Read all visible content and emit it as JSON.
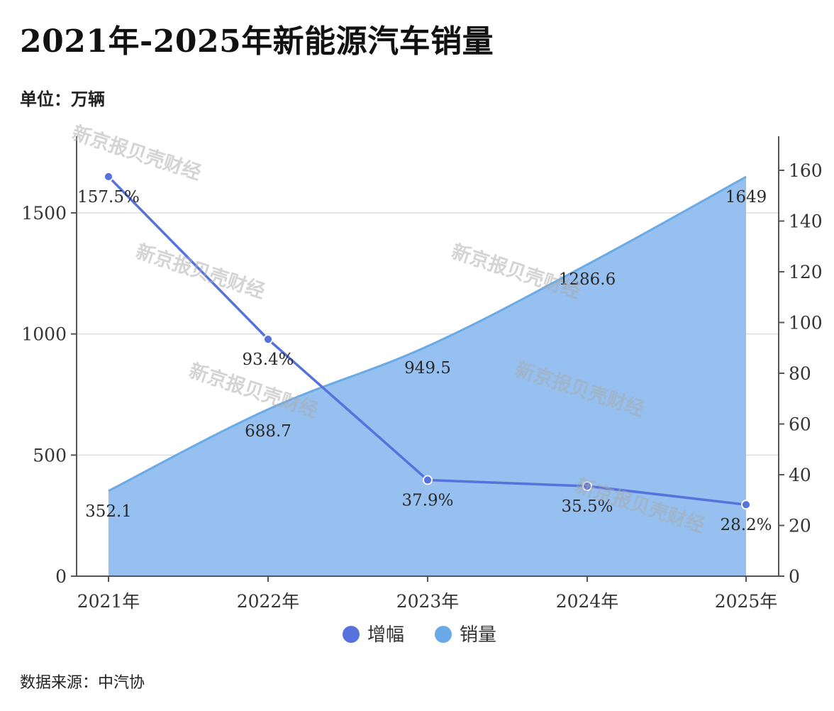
{
  "title": "2021年-2025年新能源汽车销量",
  "unit": "单位：万辆",
  "source": "数据来源：中汽协",
  "watermark": "新京报贝壳财经",
  "colors": {
    "growth_line": "#5672dd",
    "sales_fill": "#95c0ef",
    "sales_line": "#6aaae6",
    "axis": "#555555",
    "grid": "#dddddd"
  },
  "chart_data": {
    "type": "area",
    "categories": [
      "2021年",
      "2022年",
      "2023年",
      "2024年",
      "2025年"
    ],
    "series": [
      {
        "name": "增幅",
        "type": "line",
        "axis": "right",
        "values": [
          157.5,
          93.4,
          37.9,
          35.5,
          28.2
        ],
        "labels": [
          "157.5%",
          "93.4%",
          "37.9%",
          "35.5%",
          "28.2%"
        ]
      },
      {
        "name": "销量",
        "type": "area",
        "axis": "left",
        "values": [
          352.1,
          688.7,
          949.5,
          1286.6,
          1649
        ],
        "labels": [
          "352.1",
          "688.7",
          "949.5",
          "1286.6",
          "1649"
        ]
      }
    ],
    "y_left": {
      "min": 0,
      "max": 1800,
      "ticks": [
        0,
        500,
        1000,
        1500
      ]
    },
    "y_right": {
      "min": 0,
      "max": 172,
      "ticks": [
        0,
        20,
        40,
        60,
        80,
        100,
        120,
        140,
        160
      ]
    },
    "grid": true,
    "legend_position": "bottom"
  }
}
